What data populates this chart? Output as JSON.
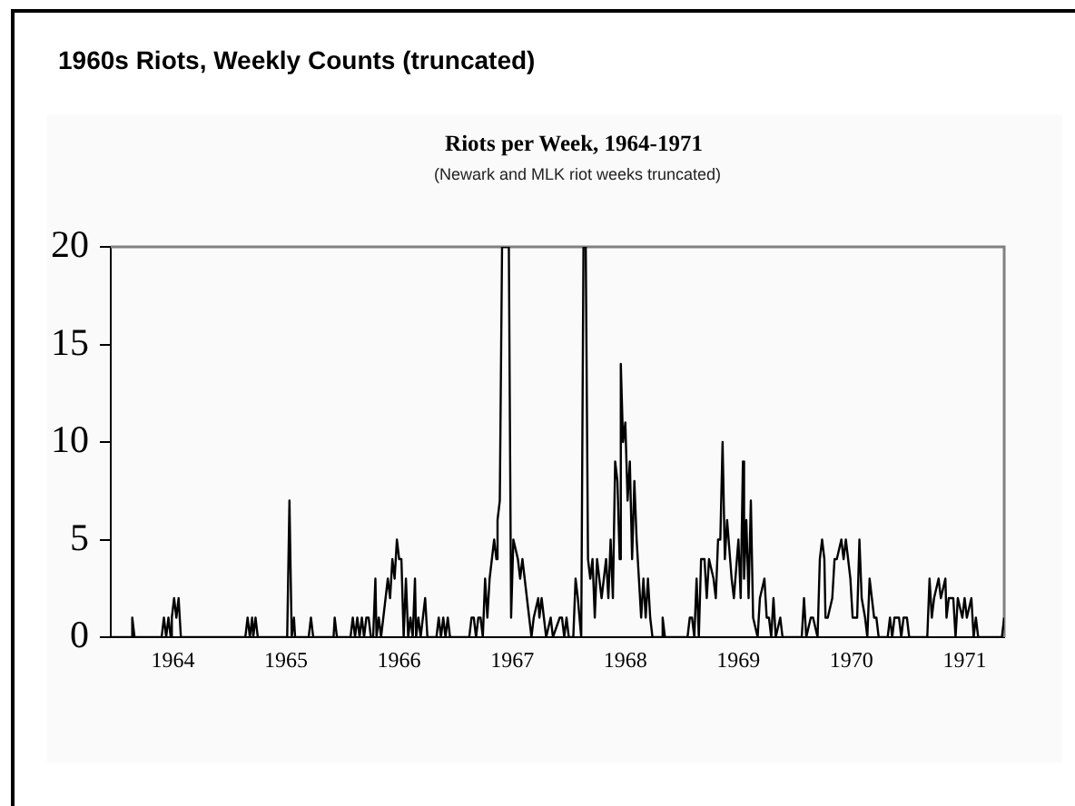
{
  "chart_data": {
    "type": "line",
    "title": "1960s Riots, Weekly Counts (truncated)",
    "subtitle": "Riots per Week, 1964-1971",
    "annotations": [
      "(Newark and MLK riot weeks truncated)"
    ],
    "x": [
      1963.45,
      1963.63,
      1963.64,
      1963.66,
      1963.9,
      1963.92,
      1963.94,
      1963.96,
      1963.98,
      1963.99,
      1964.01,
      1964.03,
      1964.05,
      1964.07,
      1964.64,
      1964.66,
      1964.68,
      1964.7,
      1964.71,
      1964.73,
      1964.75,
      1965.01,
      1965.03,
      1965.05,
      1965.07,
      1965.08,
      1965.2,
      1965.22,
      1965.24,
      1965.42,
      1965.43,
      1965.45,
      1965.57,
      1965.59,
      1965.61,
      1965.63,
      1965.65,
      1965.67,
      1965.69,
      1965.71,
      1965.73,
      1965.75,
      1965.77,
      1965.79,
      1965.8,
      1965.82,
      1965.84,
      1965.86,
      1965.88,
      1965.9,
      1965.92,
      1965.94,
      1965.96,
      1965.98,
      1966.0,
      1966.02,
      1966.04,
      1966.06,
      1966.08,
      1966.1,
      1966.12,
      1966.14,
      1966.15,
      1966.17,
      1966.19,
      1966.23,
      1966.25,
      1966.33,
      1966.35,
      1966.37,
      1966.39,
      1966.41,
      1966.43,
      1966.45,
      1966.62,
      1966.64,
      1966.66,
      1966.68,
      1966.7,
      1966.72,
      1966.74,
      1966.76,
      1966.78,
      1966.8,
      1966.84,
      1966.86,
      1966.87,
      1966.89,
      1966.91,
      1966.97,
      1966.99,
      1967.01,
      1967.05,
      1967.07,
      1967.09,
      1967.13,
      1967.15,
      1967.17,
      1967.19,
      1967.23,
      1967.24,
      1967.26,
      1967.28,
      1967.3,
      1967.34,
      1967.36,
      1967.42,
      1967.44,
      1967.46,
      1967.48,
      1967.5,
      1967.54,
      1967.56,
      1967.58,
      1967.59,
      1967.61,
      1967.63,
      1967.65,
      1967.67,
      1967.69,
      1967.71,
      1967.73,
      1967.75,
      1967.77,
      1967.79,
      1967.81,
      1967.83,
      1967.85,
      1967.87,
      1967.89,
      1967.91,
      1967.93,
      1967.95,
      1967.96,
      1967.98,
      1968.0,
      1968.02,
      1968.04,
      1968.06,
      1968.08,
      1968.1,
      1968.12,
      1968.14,
      1968.16,
      1968.18,
      1968.2,
      1968.22,
      1968.24,
      1968.32,
      1968.33,
      1968.35,
      1968.55,
      1968.57,
      1968.59,
      1968.61,
      1968.63,
      1968.65,
      1968.67,
      1968.7,
      1968.72,
      1968.74,
      1968.78,
      1968.8,
      1968.82,
      1968.84,
      1968.86,
      1968.88,
      1968.9,
      1968.94,
      1968.96,
      1969.0,
      1969.02,
      1969.04,
      1969.05,
      1969.07,
      1969.09,
      1969.11,
      1969.13,
      1969.17,
      1969.19,
      1969.23,
      1969.25,
      1969.27,
      1969.29,
      1969.31,
      1969.33,
      1969.37,
      1969.39,
      1969.56,
      1969.58,
      1969.6,
      1969.64,
      1969.66,
      1969.7,
      1969.72,
      1969.74,
      1969.76,
      1969.77,
      1969.79,
      1969.83,
      1969.85,
      1969.87,
      1969.91,
      1969.93,
      1969.95,
      1969.99,
      1970.01,
      1970.05,
      1970.07,
      1970.09,
      1970.12,
      1970.14,
      1970.16,
      1970.2,
      1970.22,
      1970.24,
      1970.32,
      1970.34,
      1970.36,
      1970.38,
      1970.42,
      1970.44,
      1970.46,
      1970.49,
      1970.51,
      1970.67,
      1970.69,
      1970.71,
      1970.73,
      1970.77,
      1970.79,
      1970.83,
      1970.84,
      1970.86,
      1970.9,
      1970.92,
      1970.94,
      1970.98,
      1971.0,
      1971.02,
      1971.06,
      1971.08,
      1971.1,
      1971.12,
      1971.33,
      1971.35
    ],
    "values": [
      0,
      0,
      1,
      0,
      0,
      1,
      0,
      1,
      0,
      1,
      2,
      1,
      2,
      0,
      0,
      1,
      0,
      1,
      0,
      1,
      0,
      0,
      7,
      0,
      1,
      0,
      0,
      1,
      0,
      0,
      1,
      0,
      0,
      1,
      0,
      1,
      0,
      1,
      0,
      1,
      1,
      0,
      0,
      3,
      0,
      1,
      0,
      1,
      2,
      3,
      2,
      4,
      3,
      5,
      4,
      4,
      0,
      3,
      0,
      1,
      0,
      3,
      0,
      1,
      0,
      2,
      0,
      0,
      1,
      0,
      1,
      0,
      1,
      0,
      0,
      1,
      1,
      0,
      1,
      1,
      0,
      3,
      1,
      3,
      5,
      4,
      6,
      7,
      20,
      20,
      1,
      5,
      4,
      3,
      4,
      2,
      1,
      0,
      1,
      2,
      1,
      2,
      1,
      0,
      1,
      0,
      1,
      1,
      0,
      1,
      0,
      0,
      3,
      2,
      2,
      0,
      20,
      20,
      4,
      3,
      4,
      1,
      4,
      3,
      2,
      3,
      4,
      2,
      5,
      2,
      9,
      8,
      4,
      14,
      10,
      11,
      7,
      9,
      4,
      8,
      5,
      3,
      1,
      3,
      1,
      3,
      1,
      0,
      0,
      1,
      0,
      0,
      1,
      1,
      0,
      3,
      0,
      4,
      4,
      2,
      4,
      3,
      2,
      5,
      5,
      10,
      4,
      6,
      3,
      2,
      5,
      2,
      9,
      3,
      6,
      2,
      7,
      1,
      0,
      2,
      3,
      1,
      1,
      0,
      2,
      0,
      1,
      0,
      0,
      2,
      0,
      1,
      1,
      0,
      4,
      5,
      4,
      1,
      1,
      2,
      4,
      4,
      5,
      4,
      5,
      3,
      1,
      1,
      5,
      2,
      1,
      0,
      3,
      1,
      1,
      0,
      0,
      1,
      0,
      1,
      1,
      0,
      1,
      1,
      0,
      0,
      3,
      1,
      2,
      3,
      2,
      3,
      1,
      2,
      2,
      0,
      2,
      1,
      2,
      1,
      2,
      0,
      1,
      0,
      0,
      1
    ],
    "color": "#000000",
    "xlim": [
      1963.45,
      1971.35
    ],
    "xticks": [
      1964,
      1965,
      1966,
      1967,
      1968,
      1969,
      1970,
      1971
    ],
    "ylim": [
      0,
      20
    ],
    "yticks": [
      0,
      5,
      10,
      15,
      20
    ],
    "grid": false,
    "legend": false,
    "marker": "none",
    "line_style": "solid"
  }
}
